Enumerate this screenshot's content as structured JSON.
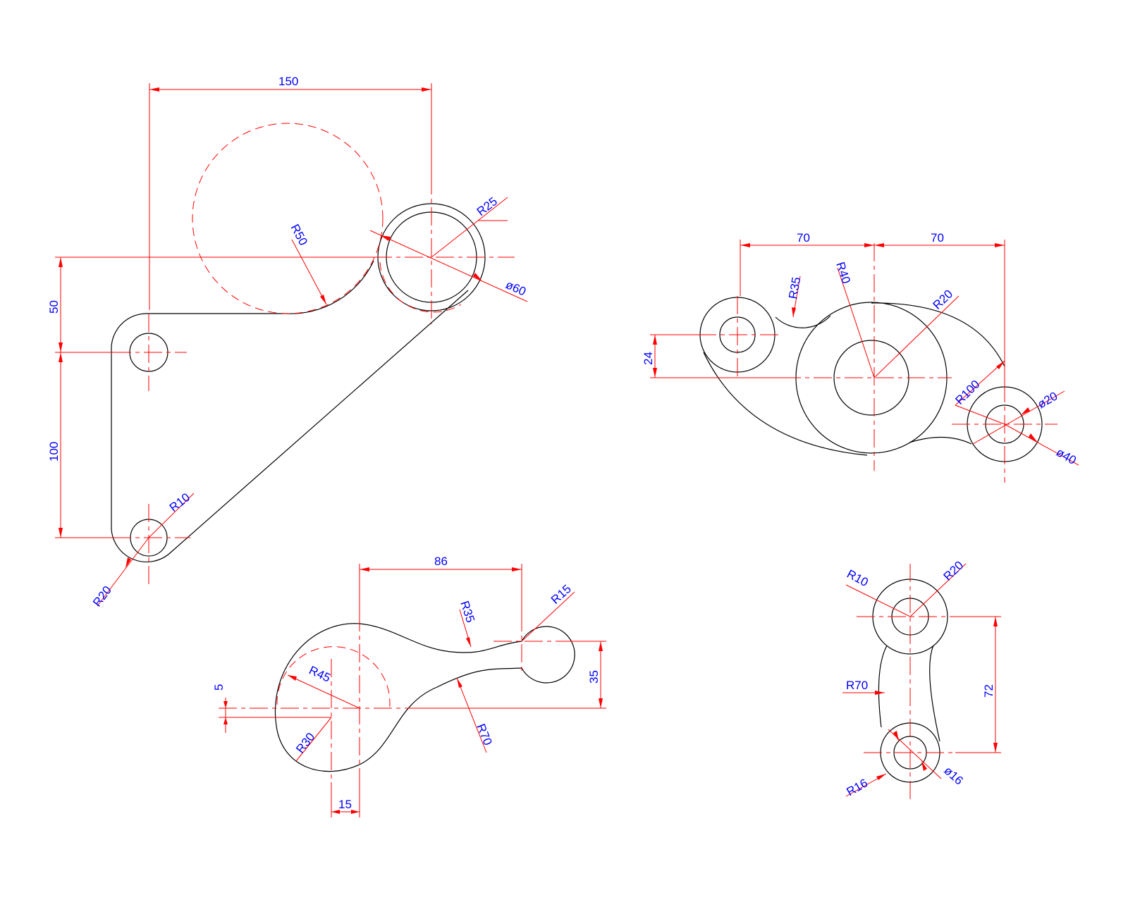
{
  "colors": {
    "outline": "#000000",
    "centerline": "#ff0000",
    "dimension": "#ff0000",
    "dimension_text": "#0000ff",
    "background": "#ffffff"
  },
  "parts": {
    "part1": {
      "labels": {
        "d150": "150",
        "r50": "R50",
        "r25": "R25",
        "d60": "ø60",
        "d50": "50",
        "d100": "100",
        "r10": "R10",
        "r20": "R20"
      }
    },
    "part2": {
      "labels": {
        "d70a": "70",
        "d70b": "70",
        "r35": "R35",
        "r40": "R40",
        "r20": "R20",
        "d24": "24",
        "r100": "R100",
        "dia20": "ø20",
        "dia40": "ø40"
      }
    },
    "part3": {
      "labels": {
        "d86": "86",
        "r35": "R35",
        "r15": "R15",
        "r45": "R45",
        "d35": "35",
        "d5": "5",
        "r30": "R30",
        "r70": "R70",
        "d15": "15"
      }
    },
    "part4": {
      "labels": {
        "r10": "R10",
        "r20": "R20",
        "r70": "R70",
        "d72": "72",
        "r16": "R16",
        "dia16": "ø16"
      }
    }
  }
}
